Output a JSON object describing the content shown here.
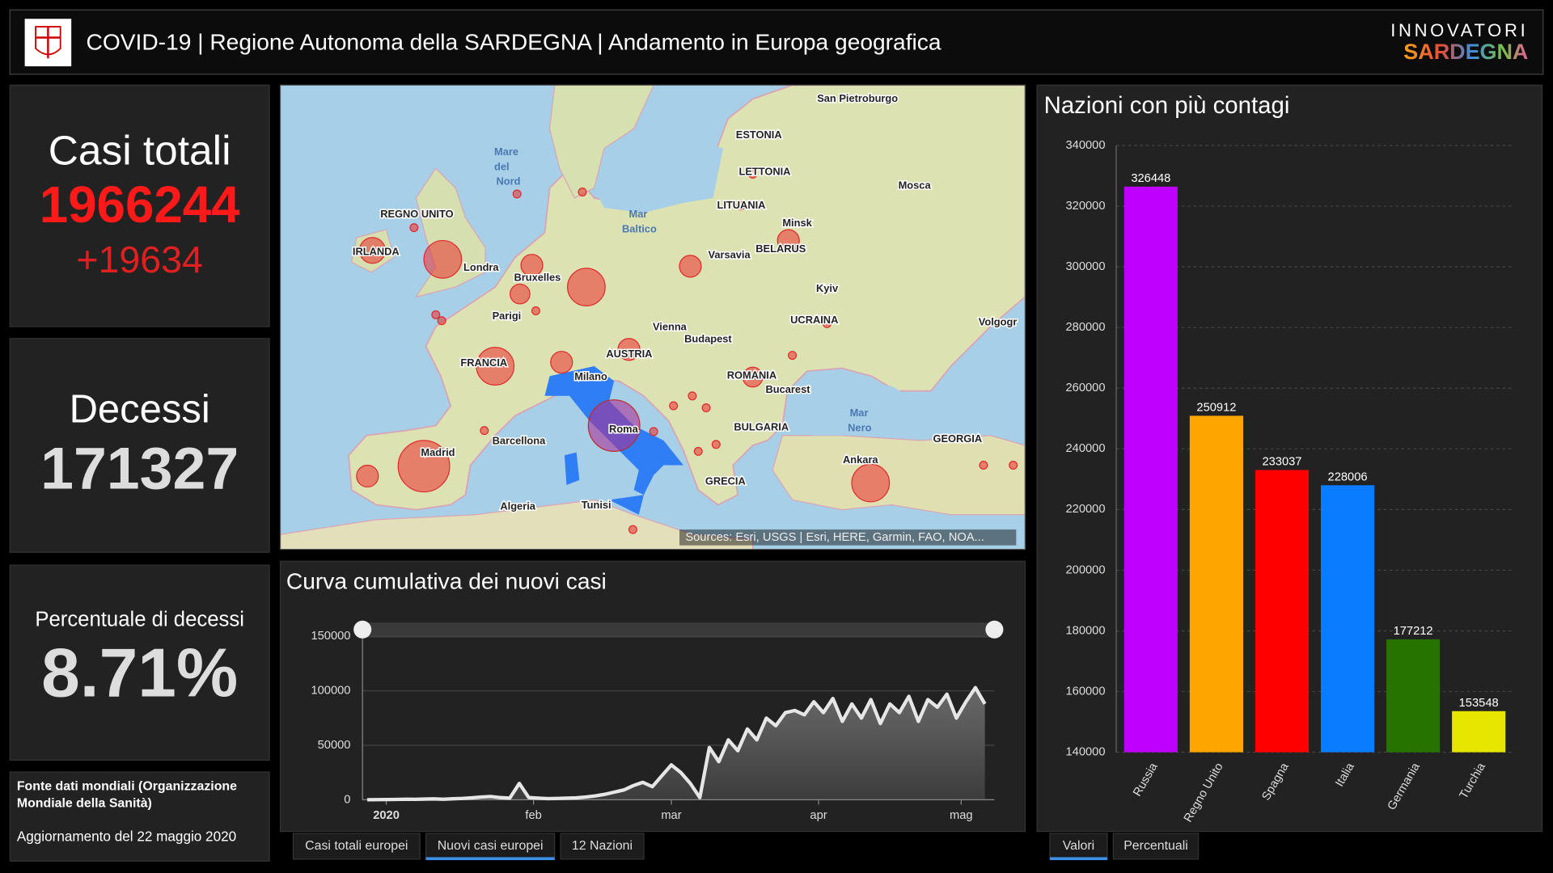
{
  "header": {
    "title": "COVID-19 | Regione Autonoma della SARDEGNA | Andamento in Europa geografica",
    "brand_top": "INNOVATORI",
    "brand_bottom": "SARDEGNA"
  },
  "kpis": {
    "total": {
      "label": "Casi totali",
      "value": "1966244",
      "delta": "+19634"
    },
    "deaths": {
      "label": "Decessi",
      "value": "171327"
    },
    "rate": {
      "label": "Percentuale di decessi",
      "value": "8.71%"
    }
  },
  "source": {
    "lines": [
      "Fonte dati mondiali (Organizzazione",
      "Mondiale della Sanità)"
    ],
    "updated": "Aggiornamento del 22 maggio 2020"
  },
  "map": {
    "labels": [
      "San Pietroburgo",
      "Mare",
      "del",
      "Nord",
      "ESTONIA",
      "LETTONIA",
      "Mosca",
      "LITUANIA",
      "REGNO UNITO",
      "IRLANDA",
      "Londra",
      "Bruxelles",
      "Minsk",
      "BELARUS",
      "Varsavia",
      "Parigi",
      "Kyiv",
      "UCRAINA",
      "Volgogr",
      "Vienna",
      "Budapest",
      "FRANCIA",
      "AUSTRIA",
      "Milano",
      "ROMANIA",
      "Bucarest",
      "Mar",
      "Nero",
      "BULGARIA",
      "Roma",
      "Barcellona",
      "Madrid",
      "GEORGIA",
      "Ankara",
      "GRECIA",
      "Algeria",
      "Tunisi",
      "Mar",
      "Baltico"
    ],
    "attribution": "Sources: Esri, USGS | Esri, HERE, Garmin, FAO, NOA..."
  },
  "chart_data": [
    {
      "type": "area",
      "title": "Curva cumulativa dei nuovi casi",
      "color": "#e6e6e6",
      "x": [
        -4,
        -2,
        0,
        2,
        4,
        6,
        8,
        10,
        12,
        14,
        16,
        18,
        20,
        22,
        24,
        26,
        28,
        30,
        32,
        34,
        36,
        38,
        40,
        42,
        44,
        46,
        48,
        50,
        52,
        54,
        56,
        58,
        60,
        62,
        64,
        66,
        68,
        70,
        72,
        74,
        76,
        78,
        80,
        82,
        84,
        86,
        88,
        90,
        92,
        94,
        96,
        98,
        100,
        102,
        104,
        106,
        108,
        110,
        112,
        114,
        116,
        118,
        120,
        122,
        124,
        126
      ],
      "values": [
        0,
        100,
        200,
        300,
        500,
        400,
        600,
        800,
        500,
        900,
        1200,
        1800,
        2500,
        3000,
        2000,
        1500,
        15000,
        2000,
        1500,
        1000,
        1200,
        1500,
        1800,
        2500,
        3500,
        5000,
        7000,
        9000,
        13000,
        16000,
        12000,
        22000,
        32000,
        25000,
        15000,
        2000,
        48000,
        35000,
        55000,
        45000,
        65000,
        55000,
        75000,
        68000,
        80000,
        82000,
        78000,
        90000,
        80000,
        93000,
        72000,
        88000,
        75000,
        92000,
        70000,
        88000,
        80000,
        95000,
        72000,
        92000,
        85000,
        97000,
        75000,
        90000,
        103000,
        88000
      ],
      "xlim": [
        -5,
        128
      ],
      "xticks": [
        {
          "value": 0,
          "label": "2020"
        },
        {
          "value": 31,
          "label": "feb"
        },
        {
          "value": 60,
          "label": "mar"
        },
        {
          "value": 91,
          "label": "apr"
        },
        {
          "value": 121,
          "label": "mag"
        }
      ],
      "ylim": [
        0,
        150000
      ],
      "yticks": [
        0,
        50000,
        100000,
        150000
      ],
      "grid": true,
      "tabs": [
        "Casi totali europei",
        "Nuovi casi europei",
        "12 Nazioni"
      ]
    },
    {
      "type": "bar",
      "title": "Nazioni con più contagi",
      "categories": [
        "Russia",
        "Regno Unito",
        "Spagna",
        "Italia",
        "Germania",
        "Turchia"
      ],
      "values": [
        326448,
        250912,
        233037,
        228006,
        177212,
        153548
      ],
      "colors": [
        "#c000ff",
        "#ffa500",
        "#ff0000",
        "#0a7cff",
        "#267300",
        "#e6e600"
      ],
      "ylim": [
        140000,
        340000
      ],
      "yticks": [
        140000,
        160000,
        180000,
        200000,
        220000,
        240000,
        260000,
        280000,
        300000,
        320000,
        340000
      ],
      "grid": true,
      "tabs": [
        "Valori",
        "Percentuali"
      ]
    }
  ]
}
